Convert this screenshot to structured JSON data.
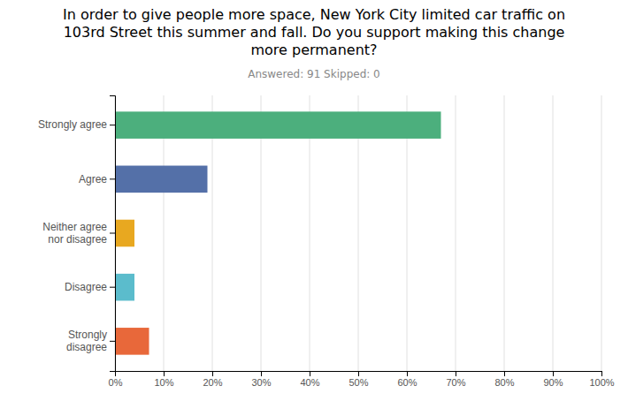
{
  "chart_data": {
    "type": "bar",
    "orientation": "horizontal",
    "title": "In order to give people more space, New York City limited car traffic on\n103rd Street this summer and fall. Do you support making this change\nmore permanent?",
    "subtitle": "Answered: 91    Skipped: 0",
    "categories": [
      "Strongly agree",
      "Agree",
      "Neither agree\nnor disagree",
      "Disagree",
      "Strongly\ndisagree"
    ],
    "values": [
      67,
      19,
      4,
      4,
      7
    ],
    "colors": [
      "#4caf7d",
      "#5470a8",
      "#e8a820",
      "#5bbccc",
      "#e8683a"
    ],
    "xlim": [
      0,
      100
    ],
    "xticks": [
      {
        "value": 0,
        "label": "0%"
      },
      {
        "value": 10,
        "label": "10%"
      },
      {
        "value": 20,
        "label": "20%"
      },
      {
        "value": 30,
        "label": "30%"
      },
      {
        "value": 40,
        "label": "40%"
      },
      {
        "value": 50,
        "label": "50%"
      },
      {
        "value": 60,
        "label": "60%"
      },
      {
        "value": 70,
        "label": "70%"
      },
      {
        "value": 80,
        "label": "80%"
      },
      {
        "value": 90,
        "label": "90%"
      },
      {
        "value": 100,
        "label": "100%"
      }
    ],
    "grid": true
  }
}
